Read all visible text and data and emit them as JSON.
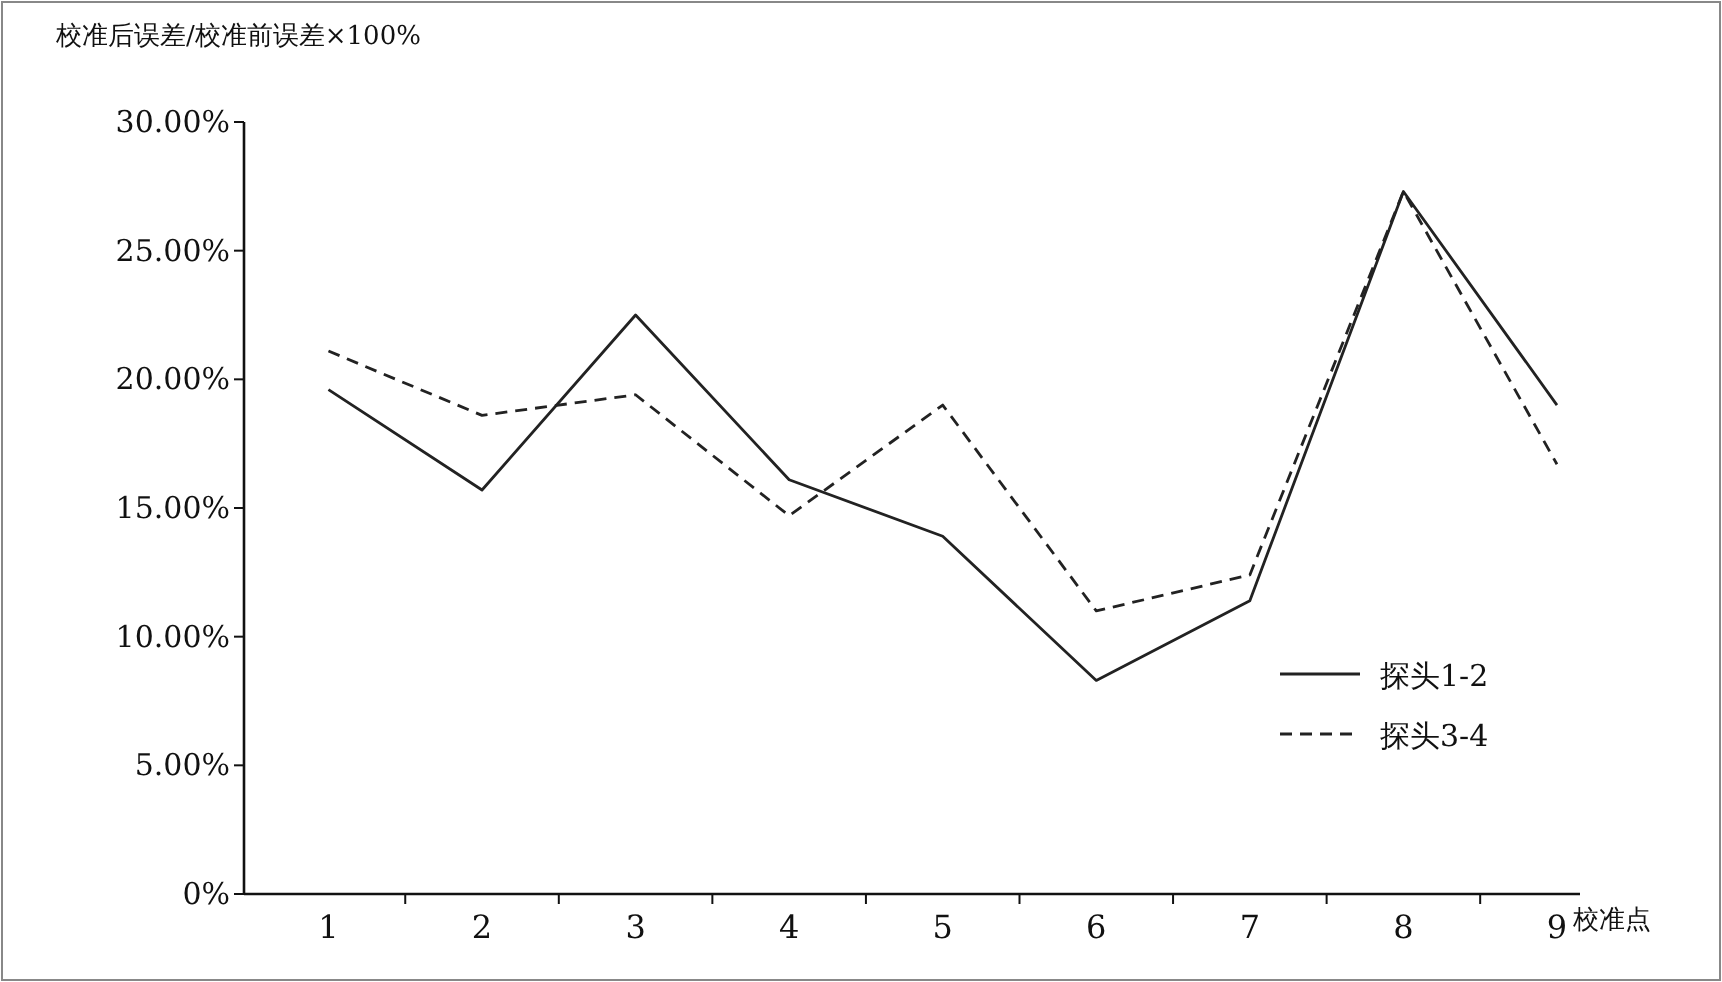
{
  "chart_data": {
    "type": "line",
    "ylabel": "校准后误差/校准前误差×100%",
    "xlabel": "校准点",
    "categories": [
      "1",
      "2",
      "3",
      "4",
      "5",
      "6",
      "7",
      "8",
      "9"
    ],
    "series": [
      {
        "name": "探头1-2",
        "color": "#222222",
        "line_style": "solid",
        "values": [
          19.6,
          15.7,
          22.5,
          16.1,
          13.9,
          8.3,
          11.4,
          27.3,
          19.0
        ]
      },
      {
        "name": "探头3-4",
        "color": "#222222",
        "line_style": "dashed",
        "values": [
          21.1,
          18.6,
          19.4,
          14.7,
          19.0,
          11.0,
          12.4,
          27.3,
          16.7
        ]
      }
    ],
    "ylim": [
      0,
      30
    ],
    "yticks": [
      {
        "value": 0,
        "label": "0%"
      },
      {
        "value": 5,
        "label": "5.00%"
      },
      {
        "value": 10,
        "label": "10.00%"
      },
      {
        "value": 15,
        "label": "15.00%"
      },
      {
        "value": 20,
        "label": "20.00%"
      },
      {
        "value": 25,
        "label": "25.00%"
      },
      {
        "value": 30,
        "label": "30.00%"
      }
    ],
    "legend": "bottom right"
  }
}
